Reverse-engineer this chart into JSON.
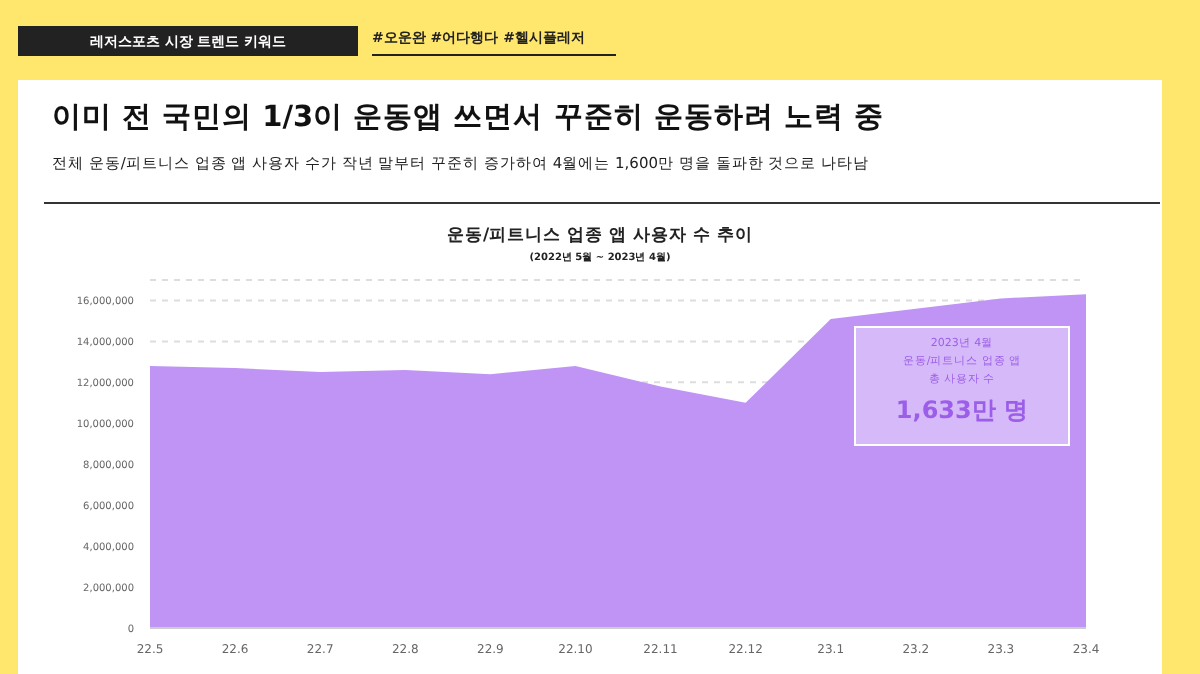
{
  "chart_data": {
    "type": "area",
    "title": "이미 전 국민의 1/3이 운동앱 쓰면서 꾸준히 운동하려 노력 중",
    "subtitle": "전체 운동/피트니스 업종 앱 사용자 수가 작년 말부터 꾸준히 증가하여 4월에는 1,600만 명을 돌파한 것으로 나타남",
    "annotations": [
      "레저스포츠 시장 트렌드 키워드",
      "#오운완 #어다행다 #헬시플레저",
      "운동/피트니스 업종 앱 사용자 수 추이",
      "(2022년 5월 ~ 2023년 4월)",
      "2023년 4월",
      "운동/피트니스 업종 앱",
      "총 사용자 수",
      "1,633만 명"
    ],
    "categories": [
      "22.5",
      "22.6",
      "22.7",
      "22.8",
      "22.9",
      "22.10",
      "22.11",
      "22.12",
      "23.1",
      "23.2",
      "23.3",
      "23.4"
    ],
    "series": [
      {
        "color": "#bf94f5",
        "values": [
          12800000,
          12700000,
          12500000,
          12600000,
          12400000,
          12800000,
          11800000,
          11000000,
          15100000,
          15600000,
          16100000,
          16300000
        ]
      }
    ],
    "ylim": [
      0,
      17000000
    ],
    "yticks": [
      0,
      {
        "value": 2000000,
        "label": "2,000,000"
      },
      {
        "value": 4000000,
        "label": "4,000,000"
      },
      {
        "value": 6000000,
        "label": "6,000,000"
      },
      {
        "value": 8000000,
        "label": "8,000,000"
      },
      {
        "value": 10000000,
        "label": "10,000,000"
      },
      {
        "value": 12000000,
        "label": "12,000,000"
      },
      {
        "value": 14000000,
        "label": "14,000,000"
      },
      {
        "value": 16000000,
        "label": "16,000,000"
      }
    ],
    "grid": "y"
  }
}
